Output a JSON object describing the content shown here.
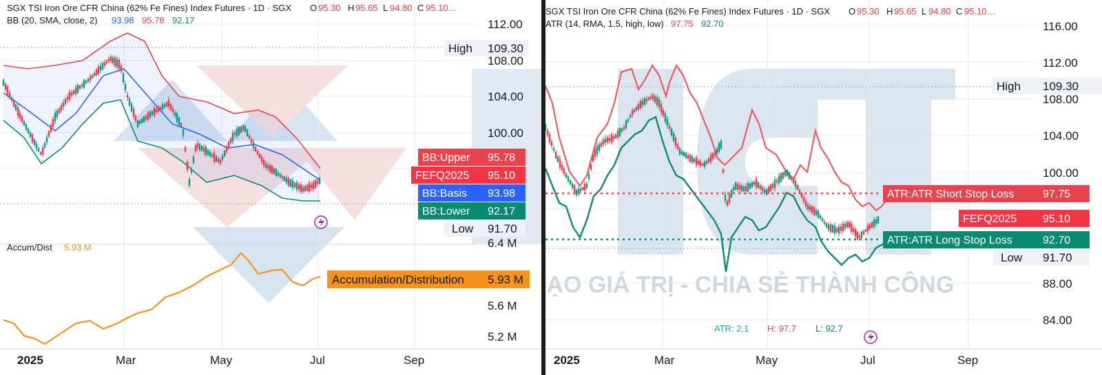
{
  "left": {
    "header": {
      "symbol": "SGX TSI Iron Ore CFR China (62% Fe Fines) Index Futures · 1D · SGX",
      "o_label": "O",
      "o": "95.30",
      "h_label": "H",
      "h": "95.65",
      "l_label": "L",
      "l": "94.80",
      "c_label": "C",
      "c": "95.10…"
    },
    "indicator": {
      "name": "BB (20, SMA, close, 2)",
      "v1": "93.98",
      "v2": "95.78",
      "v3": "92.17"
    },
    "price_axis": [
      "112.00",
      "108.00",
      "104.00",
      "100.00"
    ],
    "high": {
      "label": "High",
      "value": "109.30"
    },
    "low": {
      "label": "Low",
      "value": "91.70"
    },
    "badges": [
      {
        "label": "BB:Upper",
        "value": "95.78",
        "color": "#e8434f"
      },
      {
        "label": "FEFQ2025",
        "value": "95.10",
        "color": "#f23645"
      },
      {
        "label": "BB:Basis",
        "value": "93.98",
        "color": "#2962ff"
      },
      {
        "label": "BB:Lower",
        "value": "92.17",
        "color": "#0b8a72"
      }
    ],
    "ad": {
      "title": "Accum/Dist",
      "value": "5.93 M",
      "badge_label": "Accumulation/Distribution",
      "badge_value": "5.93 M",
      "color": "#f7931a"
    },
    "volume_axis": [
      "6.4 M",
      "5.6 M",
      "5.2 M"
    ],
    "x_axis": [
      "2025",
      "Mar",
      "May",
      "Jul",
      "Sep"
    ]
  },
  "right": {
    "header": {
      "symbol": "SGX TSI Iron Ore CFR China (62% Fe Fines) Index Futures · 1D · SGX",
      "o_label": "O",
      "o": "95.30",
      "h_label": "H",
      "h": "95.65",
      "l_label": "L",
      "l": "94.80",
      "c_label": "C",
      "c": "95.10…"
    },
    "indicator": {
      "name": "ATR (14, RMA, 1.5, high, low)",
      "v1": "97.75",
      "v2": "92.70"
    },
    "price_axis": [
      "116.00",
      "112.00",
      "108.00",
      "104.00",
      "100.00",
      "88.00",
      "84.00"
    ],
    "high": {
      "label": "High",
      "value": "109.30"
    },
    "low": {
      "label": "Low",
      "value": "91.70"
    },
    "badges": [
      {
        "label": "ATR:ATR Short Stop Loss",
        "value": "97.75",
        "color": "#e8434f"
      },
      {
        "label": "FEFQ2025",
        "value": "95.10",
        "color": "#f23645"
      },
      {
        "label": "ATR:ATR Long Stop Loss",
        "value": "92.70",
        "color": "#0b8a72"
      }
    ],
    "atr_readout": {
      "atr": "ATR: 2.1",
      "h": "H: 97.7",
      "l": "L: 92.7"
    },
    "x_axis": [
      "2025",
      "Mar",
      "May",
      "Jul",
      "Sep"
    ]
  },
  "watermark": {
    "text": "KIẾN TẠO GIÁ TRỊ - CHIA SẺ THÀNH CÔNG"
  },
  "colors": {
    "up": "#089981",
    "down": "#f23645",
    "basis": "#2962ff",
    "upper": "#e8434f",
    "lower": "#0b8a72",
    "ad": "#f7931a",
    "axis_text": "#131722"
  }
}
